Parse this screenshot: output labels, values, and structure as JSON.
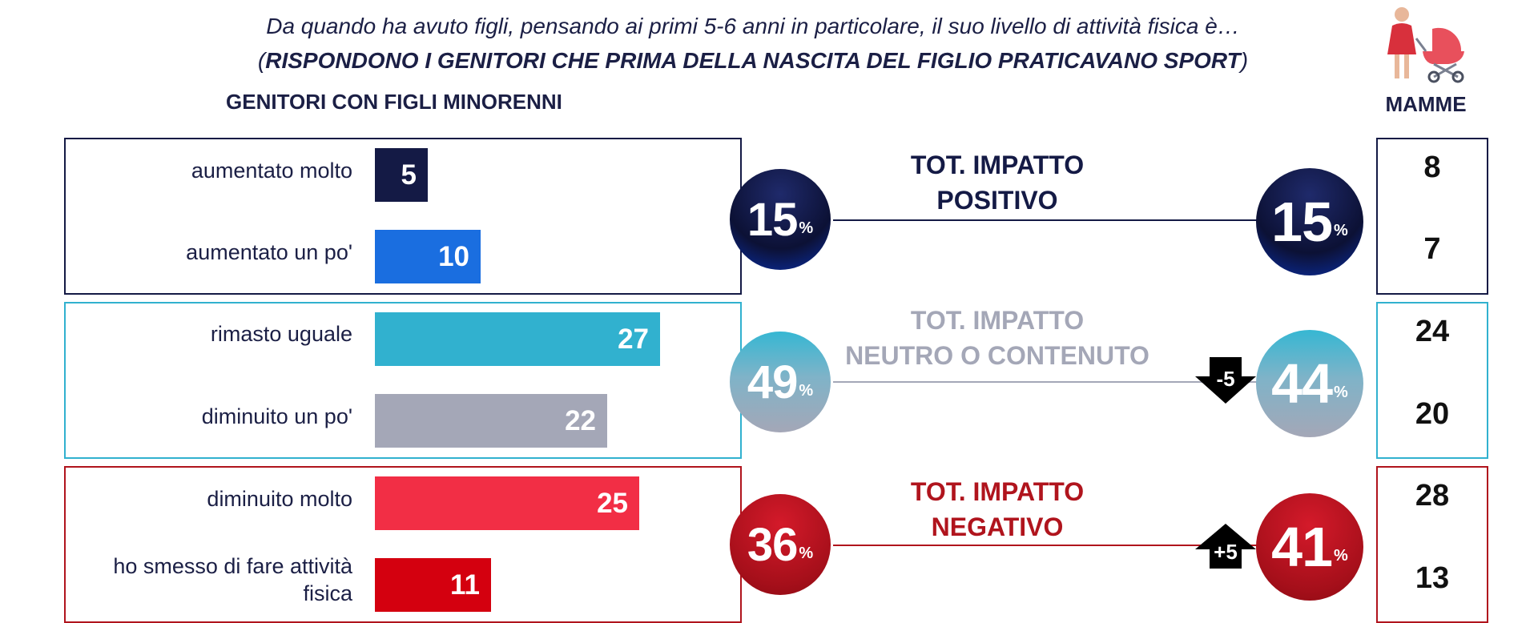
{
  "header": {
    "question": "Da quando ha avuto figli, pensando ai primi 5-6 anni in particolare, il suo livello di attività fisica è…",
    "subtitle_open": "(",
    "subtitle_bold": "RISPONDONO I GENITORI CHE PRIMA DELLA NASCITA DEL FIGLIO PRATICAVANO SPORT",
    "subtitle_close": ")",
    "section_title": "GENITORI CON FIGLI MINORENNI",
    "mamme_label": "MAMME"
  },
  "chart_data": {
    "type": "bar",
    "title": "Da quando ha avuto figli, pensando ai primi 5-6 anni in particolare, il suo livello di attività fisica è…",
    "categories": [
      "aumentato molto",
      "aumentato un po'",
      "rimasto uguale",
      "diminuito un po'",
      "diminuito molto",
      "ho smesso di fare attività fisica"
    ],
    "series": [
      {
        "name": "GENITORI CON FIGLI MINORENNI",
        "values": [
          5,
          10,
          27,
          22,
          25,
          11
        ]
      },
      {
        "name": "MAMME",
        "values": [
          8,
          7,
          24,
          20,
          28,
          13
        ]
      }
    ],
    "bar_colors": [
      "#141a45",
      "#1a6ee0",
      "#31b1cf",
      "#a4a7b7",
      "#f22e45",
      "#d4000f"
    ],
    "groups": [
      {
        "title_line1": "TOT. IMPATTO",
        "title_line2": "POSITIVO",
        "genitori_total": "15",
        "mamme_total": "15",
        "color": "#141a45",
        "delta": ""
      },
      {
        "title_line1": "TOT. IMPATTO",
        "title_line2": "NEUTRO O CONTENUTO",
        "genitori_total": "49",
        "mamme_total": "44",
        "color": "#a4a7b7",
        "delta": "-5"
      },
      {
        "title_line1": "TOT. IMPATTO",
        "title_line2": "NEGATIVO",
        "genitori_total": "36",
        "mamme_total": "41",
        "color": "#b0141d",
        "delta": "+5"
      }
    ],
    "percent_sign": "%",
    "xlim": [
      0,
      30
    ]
  }
}
